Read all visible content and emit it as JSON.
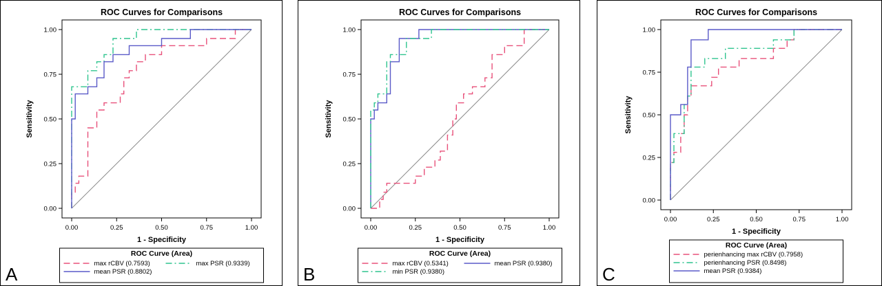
{
  "figure": {
    "panels": [
      {
        "letter": "A",
        "title": "ROC Curves for Comparisons",
        "xlabel": "1 - Specificity",
        "ylabel": "Sensitivity",
        "legend_title": "ROC Curve (Area)",
        "xticks": [
          "0.00",
          "0.25",
          "0.50",
          "0.75",
          "1.00"
        ],
        "yticks": [
          "0.00",
          "0.25",
          "0.50",
          "0.75",
          "1.00"
        ]
      },
      {
        "letter": "B",
        "title": "ROC Curves for Comparisons",
        "xlabel": "1 - Specificity",
        "ylabel": "Sensitivity",
        "legend_title": "ROC Curve (Area)",
        "xticks": [
          "0.00",
          "0.25",
          "0.50",
          "0.75",
          "1.00"
        ],
        "yticks": [
          "0.00",
          "0.25",
          "0.50",
          "0.75",
          "1.00"
        ]
      },
      {
        "letter": "C",
        "title": "ROC Curves for Comparisons",
        "xlabel": "1 - Specificity",
        "ylabel": "Sensitivity",
        "legend_title": "ROC Curve (Area)",
        "xticks": [
          "0.00",
          "0.25",
          "0.50",
          "0.75",
          "1.00"
        ],
        "yticks": [
          "0.00",
          "0.25",
          "0.50",
          "0.75",
          "1.00"
        ]
      }
    ]
  },
  "chart_data": [
    {
      "type": "line",
      "title": "ROC Curves for Comparisons",
      "xlabel": "1 - Specificity",
      "ylabel": "Sensitivity",
      "xlim": [
        0,
        1
      ],
      "ylim": [
        0,
        1
      ],
      "grid": false,
      "legend_placement": "bottom",
      "reference_line": [
        [
          0,
          0
        ],
        [
          1,
          1
        ]
      ],
      "series": [
        {
          "name": "max rCBV",
          "area": "(0.7593)",
          "style": "dashed",
          "color": "#e8507a",
          "points": [
            [
              0,
              0
            ],
            [
              0,
              0.09
            ],
            [
              0.02,
              0.09
            ],
            [
              0.02,
              0.14
            ],
            [
              0.04,
              0.14
            ],
            [
              0.04,
              0.18
            ],
            [
              0.09,
              0.18
            ],
            [
              0.09,
              0.45
            ],
            [
              0.14,
              0.45
            ],
            [
              0.14,
              0.55
            ],
            [
              0.18,
              0.55
            ],
            [
              0.18,
              0.59
            ],
            [
              0.27,
              0.59
            ],
            [
              0.27,
              0.64
            ],
            [
              0.29,
              0.64
            ],
            [
              0.29,
              0.73
            ],
            [
              0.32,
              0.73
            ],
            [
              0.32,
              0.77
            ],
            [
              0.36,
              0.77
            ],
            [
              0.36,
              0.82
            ],
            [
              0.41,
              0.82
            ],
            [
              0.41,
              0.86
            ],
            [
              0.5,
              0.86
            ],
            [
              0.5,
              0.91
            ],
            [
              0.75,
              0.91
            ],
            [
              0.75,
              0.95
            ],
            [
              0.91,
              0.95
            ],
            [
              0.91,
              1
            ],
            [
              1,
              1
            ]
          ]
        },
        {
          "name": "max PSR",
          "area": "(0.9339)",
          "style": "dashdot",
          "color": "#2ec48e",
          "points": [
            [
              0,
              0
            ],
            [
              0,
              0.68
            ],
            [
              0.09,
              0.68
            ],
            [
              0.09,
              0.77
            ],
            [
              0.14,
              0.77
            ],
            [
              0.14,
              0.82
            ],
            [
              0.18,
              0.82
            ],
            [
              0.18,
              0.86
            ],
            [
              0.23,
              0.86
            ],
            [
              0.23,
              0.95
            ],
            [
              0.36,
              0.95
            ],
            [
              0.36,
              1
            ],
            [
              1,
              1
            ]
          ]
        },
        {
          "name": "mean PSR",
          "area": "(0.8802)",
          "style": "solid",
          "color": "#5a5ac8",
          "points": [
            [
              0,
              0
            ],
            [
              0,
              0.5
            ],
            [
              0.02,
              0.5
            ],
            [
              0.02,
              0.64
            ],
            [
              0.09,
              0.64
            ],
            [
              0.09,
              0.68
            ],
            [
              0.14,
              0.68
            ],
            [
              0.14,
              0.73
            ],
            [
              0.18,
              0.73
            ],
            [
              0.18,
              0.82
            ],
            [
              0.23,
              0.82
            ],
            [
              0.23,
              0.86
            ],
            [
              0.32,
              0.86
            ],
            [
              0.32,
              0.91
            ],
            [
              0.5,
              0.91
            ],
            [
              0.5,
              0.95
            ],
            [
              0.66,
              0.95
            ],
            [
              0.66,
              1
            ],
            [
              1,
              1
            ]
          ]
        }
      ]
    },
    {
      "type": "line",
      "title": "ROC Curves for Comparisons",
      "xlabel": "1 - Specificity",
      "ylabel": "Sensitivity",
      "xlim": [
        0,
        1
      ],
      "ylim": [
        0,
        1
      ],
      "grid": false,
      "legend_placement": "bottom",
      "reference_line": [
        [
          0,
          0
        ],
        [
          1,
          1
        ]
      ],
      "series": [
        {
          "name": "max rCBV",
          "area": "(0.5341)",
          "style": "dashed",
          "color": "#e8507a",
          "points": [
            [
              0,
              0
            ],
            [
              0.05,
              0
            ],
            [
              0.05,
              0.05
            ],
            [
              0.07,
              0.05
            ],
            [
              0.07,
              0.09
            ],
            [
              0.09,
              0.09
            ],
            [
              0.09,
              0.14
            ],
            [
              0.25,
              0.14
            ],
            [
              0.25,
              0.18
            ],
            [
              0.3,
              0.18
            ],
            [
              0.3,
              0.23
            ],
            [
              0.36,
              0.23
            ],
            [
              0.36,
              0.27
            ],
            [
              0.39,
              0.27
            ],
            [
              0.39,
              0.32
            ],
            [
              0.43,
              0.32
            ],
            [
              0.43,
              0.36
            ],
            [
              0.43,
              0.41
            ],
            [
              0.46,
              0.41
            ],
            [
              0.46,
              0.5
            ],
            [
              0.48,
              0.5
            ],
            [
              0.48,
              0.59
            ],
            [
              0.52,
              0.59
            ],
            [
              0.52,
              0.64
            ],
            [
              0.57,
              0.64
            ],
            [
              0.57,
              0.68
            ],
            [
              0.64,
              0.68
            ],
            [
              0.64,
              0.73
            ],
            [
              0.68,
              0.73
            ],
            [
              0.68,
              0.86
            ],
            [
              0.75,
              0.86
            ],
            [
              0.75,
              0.91
            ],
            [
              0.86,
              0.91
            ],
            [
              0.86,
              1
            ],
            [
              1,
              1
            ]
          ]
        },
        {
          "name": "mean PSR",
          "area": "(0.9380)",
          "style": "solid",
          "color": "#5a5ac8",
          "points": [
            [
              0,
              0
            ],
            [
              0,
              0.5
            ],
            [
              0.02,
              0.5
            ],
            [
              0.02,
              0.55
            ],
            [
              0.04,
              0.55
            ],
            [
              0.04,
              0.59
            ],
            [
              0.09,
              0.59
            ],
            [
              0.09,
              0.64
            ],
            [
              0.11,
              0.64
            ],
            [
              0.11,
              0.82
            ],
            [
              0.16,
              0.82
            ],
            [
              0.16,
              0.95
            ],
            [
              0.27,
              0.95
            ],
            [
              0.27,
              1
            ],
            [
              1,
              1
            ]
          ]
        },
        {
          "name": "min PSR",
          "area": "(0.9380)",
          "style": "dashdot",
          "color": "#2ec48e",
          "points": [
            [
              0,
              0
            ],
            [
              0,
              0.55
            ],
            [
              0.02,
              0.55
            ],
            [
              0.02,
              0.59
            ],
            [
              0.04,
              0.59
            ],
            [
              0.04,
              0.64
            ],
            [
              0.09,
              0.64
            ],
            [
              0.09,
              0.82
            ],
            [
              0.11,
              0.82
            ],
            [
              0.11,
              0.86
            ],
            [
              0.2,
              0.86
            ],
            [
              0.2,
              0.95
            ],
            [
              0.34,
              0.95
            ],
            [
              0.34,
              1
            ],
            [
              1,
              1
            ]
          ]
        }
      ]
    },
    {
      "type": "line",
      "title": "ROC Curves for Comparisons",
      "xlabel": "1 - Specificity",
      "ylabel": "Sensitivity",
      "xlim": [
        0,
        1
      ],
      "ylim": [
        0,
        1
      ],
      "grid": false,
      "legend_placement": "bottom",
      "reference_line": [
        [
          0,
          0
        ],
        [
          1,
          1
        ]
      ],
      "series": [
        {
          "name": "perienhancing max rCBV",
          "area": "(0.7958)",
          "style": "dashed",
          "color": "#e8507a",
          "points": [
            [
              0,
              0
            ],
            [
              0,
              0.22
            ],
            [
              0.02,
              0.22
            ],
            [
              0.02,
              0.28
            ],
            [
              0.06,
              0.28
            ],
            [
              0.06,
              0.39
            ],
            [
              0.08,
              0.39
            ],
            [
              0.08,
              0.5
            ],
            [
              0.1,
              0.5
            ],
            [
              0.1,
              0.61
            ],
            [
              0.12,
              0.61
            ],
            [
              0.12,
              0.67
            ],
            [
              0.24,
              0.67
            ],
            [
              0.24,
              0.72
            ],
            [
              0.28,
              0.72
            ],
            [
              0.28,
              0.78
            ],
            [
              0.4,
              0.78
            ],
            [
              0.4,
              0.83
            ],
            [
              0.6,
              0.83
            ],
            [
              0.6,
              0.89
            ],
            [
              0.68,
              0.89
            ],
            [
              0.68,
              0.94
            ],
            [
              0.72,
              0.94
            ],
            [
              0.72,
              1
            ],
            [
              1,
              1
            ]
          ]
        },
        {
          "name": "perienhancing PSR",
          "area": "(0.8498)",
          "style": "dashdot",
          "color": "#2ec48e",
          "points": [
            [
              0,
              0
            ],
            [
              0,
              0.22
            ],
            [
              0.02,
              0.22
            ],
            [
              0.02,
              0.39
            ],
            [
              0.08,
              0.39
            ],
            [
              0.08,
              0.56
            ],
            [
              0.1,
              0.56
            ],
            [
              0.1,
              0.61
            ],
            [
              0.12,
              0.61
            ],
            [
              0.12,
              0.78
            ],
            [
              0.2,
              0.78
            ],
            [
              0.2,
              0.83
            ],
            [
              0.32,
              0.83
            ],
            [
              0.32,
              0.89
            ],
            [
              0.6,
              0.89
            ],
            [
              0.6,
              0.94
            ],
            [
              0.72,
              0.94
            ],
            [
              0.72,
              1
            ],
            [
              1,
              1
            ]
          ]
        },
        {
          "name": "mean PSR",
          "area": "(0.9384)",
          "style": "solid",
          "color": "#5a5ac8",
          "points": [
            [
              0,
              0
            ],
            [
              0,
              0.5
            ],
            [
              0.06,
              0.5
            ],
            [
              0.06,
              0.56
            ],
            [
              0.1,
              0.56
            ],
            [
              0.1,
              0.78
            ],
            [
              0.12,
              0.78
            ],
            [
              0.12,
              0.94
            ],
            [
              0.22,
              0.94
            ],
            [
              0.22,
              1
            ],
            [
              1,
              1
            ]
          ]
        }
      ]
    }
  ]
}
